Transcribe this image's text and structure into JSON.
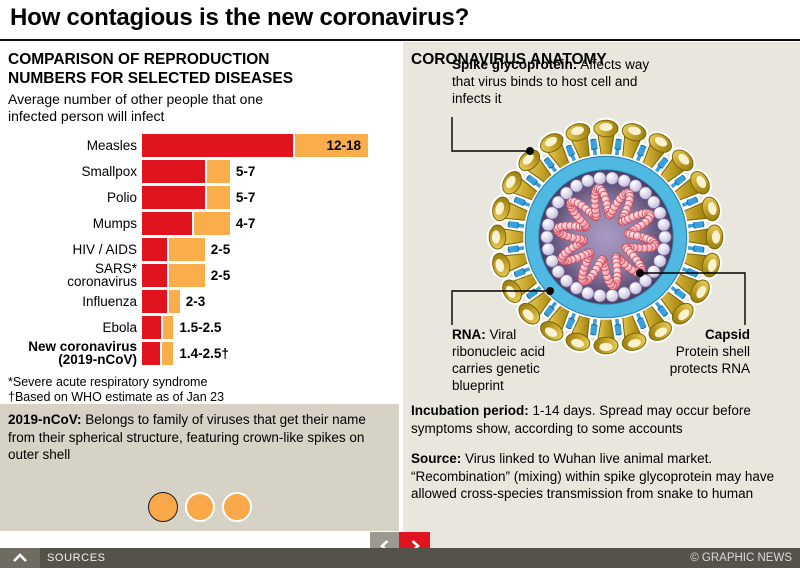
{
  "title": "How contagious is the new coronavirus?",
  "chart": {
    "heading": "COMPARISON OF REPRODUCTION\nNUMBERS FOR SELECTED DISEASES",
    "subtitle": "Average number of other people that one infected person will infect",
    "footnote1": "*Severe acute respiratory syndrome",
    "footnote2": "†Based on WHO estimate as of Jan 23"
  },
  "chart_data": {
    "type": "bar",
    "title": "Comparison of reproduction numbers for selected diseases",
    "xlabel": "Average number of other people that one infected person will infect",
    "xlim": [
      0,
      18
    ],
    "categories": [
      "Measles",
      "Smallpox",
      "Polio",
      "Mumps",
      "HIV / AIDS",
      "SARS* coronavirus",
      "Influenza",
      "Ebola",
      "New coronavirus (2019-nCoV)"
    ],
    "label_lines": [
      "Measles",
      "Smallpox",
      "Polio",
      "Mumps",
      "HIV / AIDS",
      "SARS*\ncoronavirus",
      "Influenza",
      "Ebola",
      "New coronavirus\n(2019-nCoV)"
    ],
    "bold_category": [
      false,
      false,
      false,
      false,
      false,
      false,
      false,
      false,
      true
    ],
    "series": [
      {
        "name": "Lower estimate",
        "values": [
          12,
          5,
          5,
          4,
          2,
          2,
          2,
          1.5,
          1.4
        ],
        "color": "#e0141e"
      },
      {
        "name": "Upper estimate",
        "values": [
          18,
          7,
          7,
          7,
          5,
          5,
          3,
          2.5,
          2.5
        ],
        "color": "#f9ae4b"
      }
    ],
    "value_labels": [
      "12-18",
      "5-7",
      "5-7",
      "4-7",
      "2-5",
      "2-5",
      "2-3",
      "1.5-2.5",
      "1.4-2.5†"
    ],
    "label_inside_bar": [
      true,
      false,
      false,
      false,
      false,
      false,
      false,
      false,
      false
    ],
    "legend": "none",
    "grid": false
  },
  "info_box": {
    "lead": "2019-nCoV:",
    "text": "Belongs to family of viruses that get their name from their spherical structure, featuring crown-like spikes on outer shell",
    "dot_count": 3
  },
  "anatomy": {
    "heading": "CORONAVIRUS ANATOMY",
    "spike_label_bold": "Spike glycoprotein:",
    "spike_label_text": "Affects way that virus binds to host cell and infects it",
    "rna_label_bold": "RNA:",
    "rna_label_text": "Viral ribonucleic acid carries genetic blueprint",
    "capsid_label_bold": "Capsid",
    "capsid_label_text": "Protein shell protects RNA",
    "incubation_bold": "Incubation period:",
    "incubation_text": "1-14 days. Spread may occur before symptoms show, according to some accounts",
    "source_bold": "Source:",
    "source_text": "Virus linked to Wuhan live animal market. “Recombination” (mixing) within spike glycoprotein may have allowed cross-species transmission from snake to human"
  },
  "footer": {
    "sources_label": "SOURCES",
    "copyright": "© GRAPHIC NEWS"
  },
  "colors": {
    "bar_min": "#e0141e",
    "bar_range": "#f9ae4b",
    "accent_red": "#e0141e",
    "panel_beige": "#e9e6dd",
    "infobox_gray": "#d6d2c5",
    "footer_gray": "#55524b",
    "footer_light": "#6e6b63",
    "nav_gray": "#9c9991",
    "spike_gold": "#c8a52b",
    "spike_gold_dark": "#7a6605",
    "spike_highlight": "#fdf6da",
    "membrane_blue": "#50b9e2",
    "membrane_edge": "#2b85b5",
    "teardrop_blue": "#3aa0dc",
    "teardrop_edge": "#1a6ca8",
    "capsid_bead_edge": "#6f6190",
    "rna_edge": "#c84f60",
    "dot_orange": "#f9a94a"
  }
}
